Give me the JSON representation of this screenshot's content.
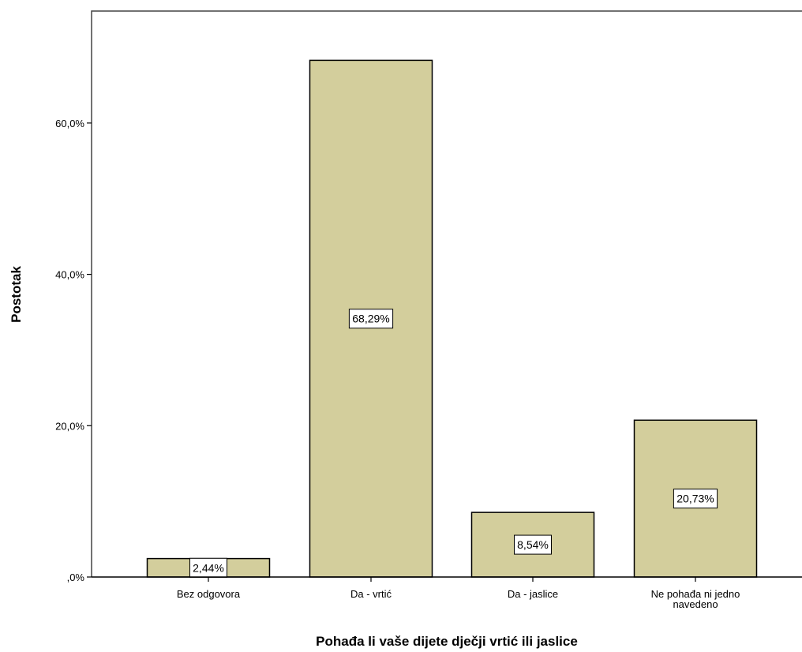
{
  "chart_data": {
    "type": "bar",
    "title": "",
    "xlabel": "Pohađa li vaše dijete dječji vrtić ili jaslice",
    "ylabel": "Postotak",
    "categories": [
      [
        "Bez odgovora"
      ],
      [
        "Da - vrtić"
      ],
      [
        "Da - jaslice"
      ],
      [
        "Ne pohađa ni jedno",
        "navedeno"
      ]
    ],
    "values": [
      2.44,
      68.29,
      8.54,
      20.73
    ],
    "data_labels": [
      "2,44%",
      "68,29%",
      "8,54%",
      "20,73%"
    ],
    "y_ticks": [
      {
        "value": 0,
        "label": ",0%"
      },
      {
        "value": 20,
        "label": "20,0%"
      },
      {
        "value": 40,
        "label": "40,0%"
      },
      {
        "value": 60,
        "label": "60,0%"
      }
    ],
    "ylim": [
      0,
      74.8
    ],
    "grid": false,
    "colors": {
      "bar_fill": "#D3CE9C",
      "bar_stroke": "#000000",
      "label_box": "#ffffff"
    }
  }
}
